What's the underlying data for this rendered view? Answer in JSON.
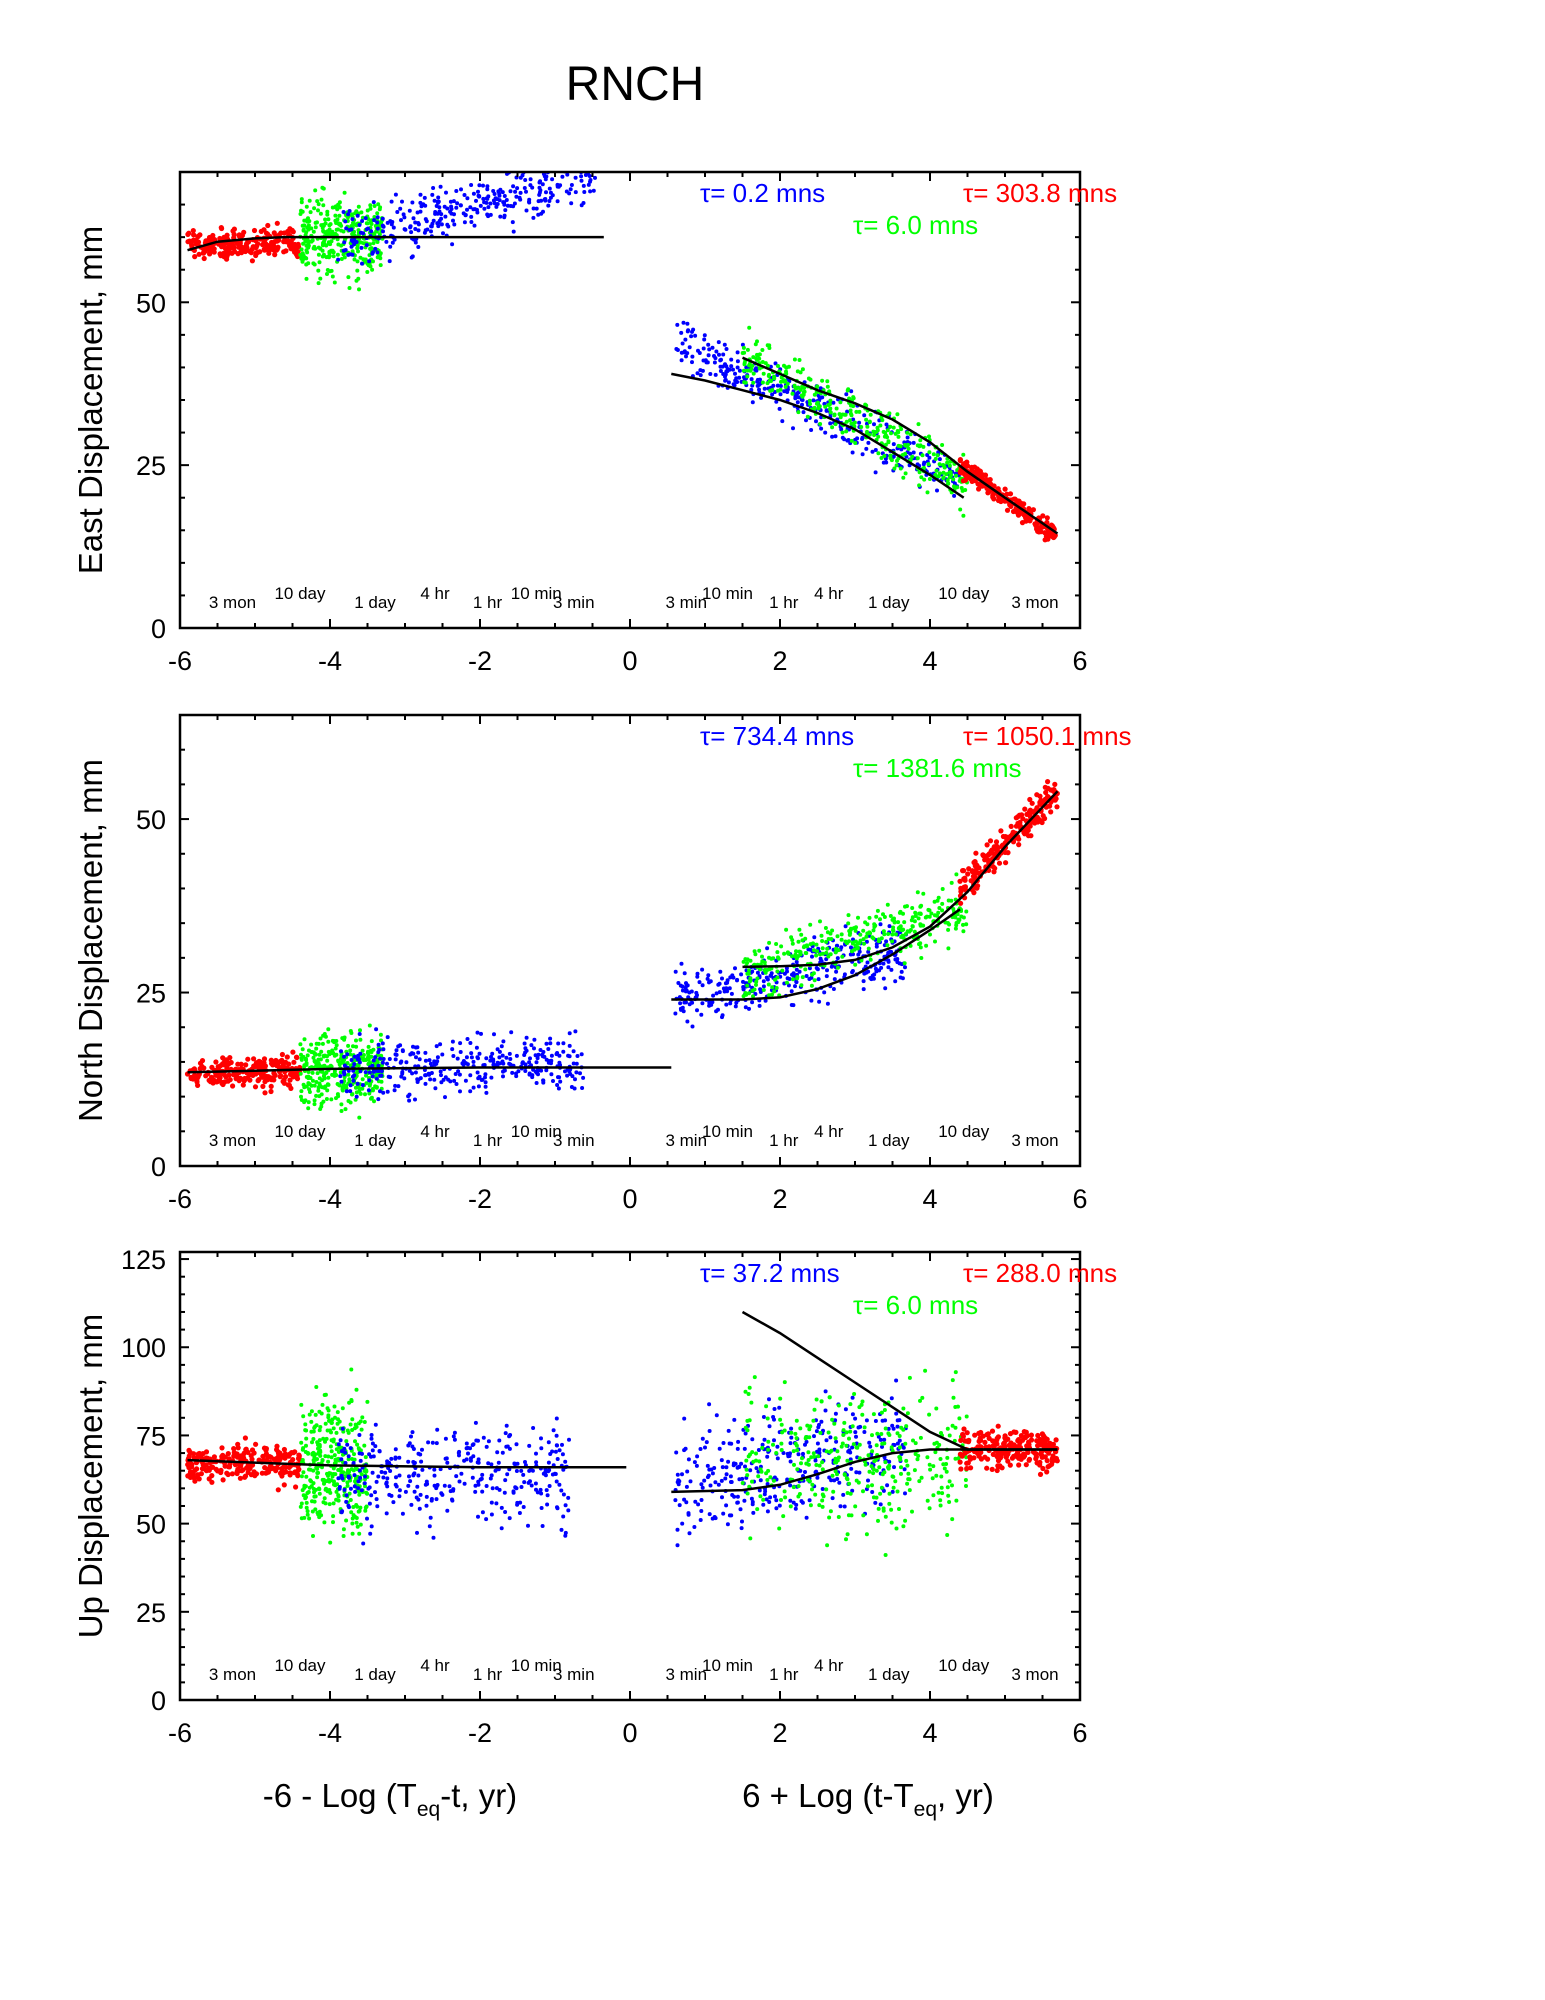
{
  "title": "RNCH",
  "colors": {
    "red": "#ff0000",
    "green": "#00ff00",
    "blue": "#0000ff",
    "fit": "#000000"
  },
  "xlabels": {
    "left": {
      "pre": "-6 - Log (T",
      "sub": "eq",
      "post": "-t, yr)"
    },
    "right": {
      "pre": "6 + Log (t-T",
      "sub": "eq",
      "post": ", yr)"
    }
  },
  "time_labels": {
    "left": [
      {
        "x": -5.3,
        "text": "3 mon",
        "level": "low"
      },
      {
        "x": -4.4,
        "text": "10 day",
        "level": "high"
      },
      {
        "x": -3.4,
        "text": "1 day",
        "level": "low"
      },
      {
        "x": -2.6,
        "text": "4 hr",
        "level": "high"
      },
      {
        "x": -1.9,
        "text": "1 hr",
        "level": "low"
      },
      {
        "x": -1.25,
        "text": "10 min",
        "level": "high"
      },
      {
        "x": -0.75,
        "text": "3 min",
        "level": "low"
      }
    ],
    "right": [
      {
        "x": 0.75,
        "text": "3 min",
        "level": "low"
      },
      {
        "x": 1.3,
        "text": "10 min",
        "level": "high"
      },
      {
        "x": 2.05,
        "text": "1 hr",
        "level": "low"
      },
      {
        "x": 2.65,
        "text": "4 hr",
        "level": "high"
      },
      {
        "x": 3.45,
        "text": "1 day",
        "level": "low"
      },
      {
        "x": 4.45,
        "text": "10 day",
        "level": "high"
      },
      {
        "x": 5.4,
        "text": "3 mon",
        "level": "low"
      }
    ]
  },
  "chart_data": [
    {
      "type": "scatter",
      "name": "east",
      "title": "",
      "ylabel": "East Displacement, mm",
      "xlim": [
        -6,
        6
      ],
      "ylim": [
        0,
        70
      ],
      "xticks": [
        -6,
        -4,
        -2,
        0,
        2,
        4,
        6
      ],
      "yticks": [
        0,
        25,
        50
      ],
      "tau": [
        {
          "color": "blue",
          "text": "τ= 0.2 mns"
        },
        {
          "color": "red",
          "text": "τ= 303.8 mns"
        },
        {
          "color": "green",
          "text": "τ= 6.0 mns"
        }
      ],
      "series": [
        {
          "color": "red",
          "side": "pre",
          "x": [
            -5.9,
            -4.4
          ],
          "y": [
            59,
            59
          ],
          "spread": 2.2
        },
        {
          "color": "green",
          "side": "pre",
          "x": [
            -4.4,
            -3.3
          ],
          "y": [
            60,
            60
          ],
          "spread": 6
        },
        {
          "color": "blue",
          "side": "pre",
          "x": [
            -3.9,
            -0.4
          ],
          "y": [
            59,
            70
          ],
          "spread": 4
        },
        {
          "color": "blue",
          "side": "post",
          "x": [
            0.6,
            4.4
          ],
          "y": [
            44,
            23
          ],
          "spread": 3.5
        },
        {
          "color": "green",
          "side": "post",
          "x": [
            1.5,
            4.5
          ],
          "y": [
            42,
            22
          ],
          "spread": 4
        },
        {
          "color": "red",
          "side": "post",
          "x": [
            4.4,
            5.7
          ],
          "y": [
            25,
            14
          ],
          "spread": 1.5
        }
      ],
      "fits": [
        {
          "x": [
            -5.9,
            -5.5,
            -5.0,
            -4.6,
            -4.0,
            -3.0,
            -2.0,
            -0.35
          ],
          "y": [
            58,
            59.3,
            59.8,
            60,
            60,
            60,
            60,
            60
          ]
        },
        {
          "x": [
            0.55,
            1.0,
            1.5,
            2.0,
            2.5,
            3.0,
            3.5,
            4.0,
            4.45
          ],
          "y": [
            39,
            38,
            36.5,
            35,
            33,
            30.5,
            27,
            23.5,
            20
          ]
        },
        {
          "x": [
            1.5,
            2.0,
            2.5,
            3.0,
            3.5,
            4.0,
            4.5,
            5.0,
            5.7
          ],
          "y": [
            41.5,
            39,
            36.5,
            34.5,
            32,
            28.5,
            24,
            20,
            14.5
          ]
        }
      ]
    },
    {
      "type": "scatter",
      "name": "north",
      "title": "",
      "ylabel": "North Displacement, mm",
      "xlim": [
        -6,
        6
      ],
      "ylim": [
        0,
        65
      ],
      "xticks": [
        -6,
        -4,
        -2,
        0,
        2,
        4,
        6
      ],
      "yticks": [
        0,
        25,
        50
      ],
      "tau": [
        {
          "color": "blue",
          "text": "τ= 734.4 mns"
        },
        {
          "color": "red",
          "text": "τ= 1050.1 mns"
        },
        {
          "color": "green",
          "text": "τ= 1381.6 mns"
        }
      ],
      "series": [
        {
          "color": "red",
          "side": "pre",
          "x": [
            -5.9,
            -4.4
          ],
          "y": [
            13.5,
            13.5
          ],
          "spread": 2
        },
        {
          "color": "green",
          "side": "pre",
          "x": [
            -4.4,
            -3.3
          ],
          "y": [
            14,
            14
          ],
          "spread": 5
        },
        {
          "color": "blue",
          "side": "pre",
          "x": [
            -3.9,
            -0.6
          ],
          "y": [
            14,
            15
          ],
          "spread": 4
        },
        {
          "color": "blue",
          "side": "post",
          "x": [
            0.6,
            3.7
          ],
          "y": [
            24,
            31
          ],
          "spread": 4
        },
        {
          "color": "green",
          "side": "post",
          "x": [
            1.5,
            4.5
          ],
          "y": [
            28,
            37
          ],
          "spread": 4
        },
        {
          "color": "red",
          "side": "post",
          "x": [
            4.4,
            5.7
          ],
          "y": [
            40,
            54
          ],
          "spread": 2.5
        }
      ],
      "fits": [
        {
          "x": [
            -5.9,
            -4.0,
            -2.0,
            0.55
          ],
          "y": [
            13.5,
            14,
            14.2,
            14.2
          ]
        },
        {
          "x": [
            0.55,
            1.5,
            2.0,
            2.5,
            3.0,
            3.5,
            4.0,
            4.4
          ],
          "y": [
            24,
            24,
            24.3,
            25.5,
            27.5,
            30.5,
            34,
            37
          ]
        },
        {
          "x": [
            1.5,
            2.0,
            2.5,
            3.0,
            3.5,
            4.0,
            4.5,
            5.0,
            5.7
          ],
          "y": [
            28.7,
            28.8,
            29,
            29.7,
            31.5,
            34.5,
            39.5,
            46,
            54
          ]
        }
      ]
    },
    {
      "type": "scatter",
      "name": "up",
      "title": "",
      "ylabel": "Up Displacement, mm",
      "xlim": [
        -6,
        6
      ],
      "ylim": [
        0,
        127
      ],
      "xticks": [
        -6,
        -4,
        -2,
        0,
        2,
        4,
        6
      ],
      "yticks": [
        0,
        25,
        50,
        75,
        100,
        125
      ],
      "tau": [
        {
          "color": "blue",
          "text": "τ= 37.2 mns"
        },
        {
          "color": "red",
          "text": "τ= 288.0 mns"
        },
        {
          "color": "green",
          "text": "τ= 6.0 mns"
        }
      ],
      "series": [
        {
          "color": "red",
          "side": "pre",
          "x": [
            -5.9,
            -4.4
          ],
          "y": [
            67,
            67
          ],
          "spread": 5
        },
        {
          "color": "green",
          "side": "pre",
          "x": [
            -4.4,
            -3.5
          ],
          "y": [
            66,
            66
          ],
          "spread": 18
        },
        {
          "color": "blue",
          "side": "pre",
          "x": [
            -3.9,
            -0.8
          ],
          "y": [
            66,
            63
          ],
          "spread": 14
        },
        {
          "color": "blue",
          "side": "post",
          "x": [
            0.6,
            3.7
          ],
          "y": [
            62,
            72
          ],
          "spread": 15
        },
        {
          "color": "green",
          "side": "post",
          "x": [
            1.5,
            4.5
          ],
          "y": [
            68,
            68
          ],
          "spread": 20
        },
        {
          "color": "red",
          "side": "post",
          "x": [
            4.4,
            5.7
          ],
          "y": [
            71,
            71
          ],
          "spread": 5
        }
      ],
      "fits": [
        {
          "x": [
            -5.9,
            -4.0,
            -2.0,
            -0.05
          ],
          "y": [
            68,
            66.5,
            66,
            66
          ]
        },
        {
          "x": [
            0.55,
            1.5,
            2.0,
            2.5,
            3.0,
            3.5,
            4.0,
            4.5,
            5.7
          ],
          "y": [
            59,
            59.5,
            61,
            64,
            67.5,
            70,
            71,
            71,
            71
          ]
        },
        {
          "x": [
            1.5,
            2.0,
            2.5,
            3.0,
            3.5,
            4.0,
            4.5,
            5.7
          ],
          "y": [
            110,
            104,
            97,
            90,
            83,
            76,
            71,
            71
          ]
        }
      ]
    }
  ]
}
